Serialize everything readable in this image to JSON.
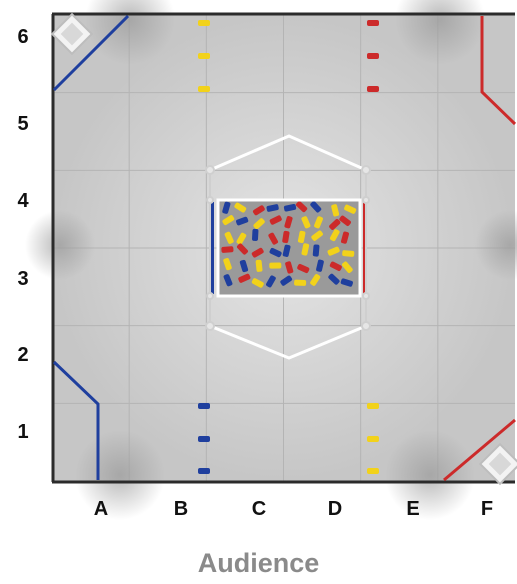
{
  "field": {
    "rows": [
      "6",
      "5",
      "4",
      "3",
      "2",
      "1"
    ],
    "columns": [
      "A",
      "B",
      "C",
      "D",
      "E",
      "F"
    ],
    "audience_label": "Audience",
    "colors": {
      "red": "#cc2a2a",
      "blue": "#1f3f9e",
      "yellow": "#f2d21a",
      "tape_white": "#ffffff",
      "tile": "#c9c9c9",
      "tile_seam": "#b4b4b4",
      "wall": "#2b2b2b"
    },
    "goal_corners": [
      "top-left",
      "bottom-right"
    ],
    "center_goal_pieces": {
      "yellow": 22,
      "blue": 16,
      "red": 16
    }
  }
}
